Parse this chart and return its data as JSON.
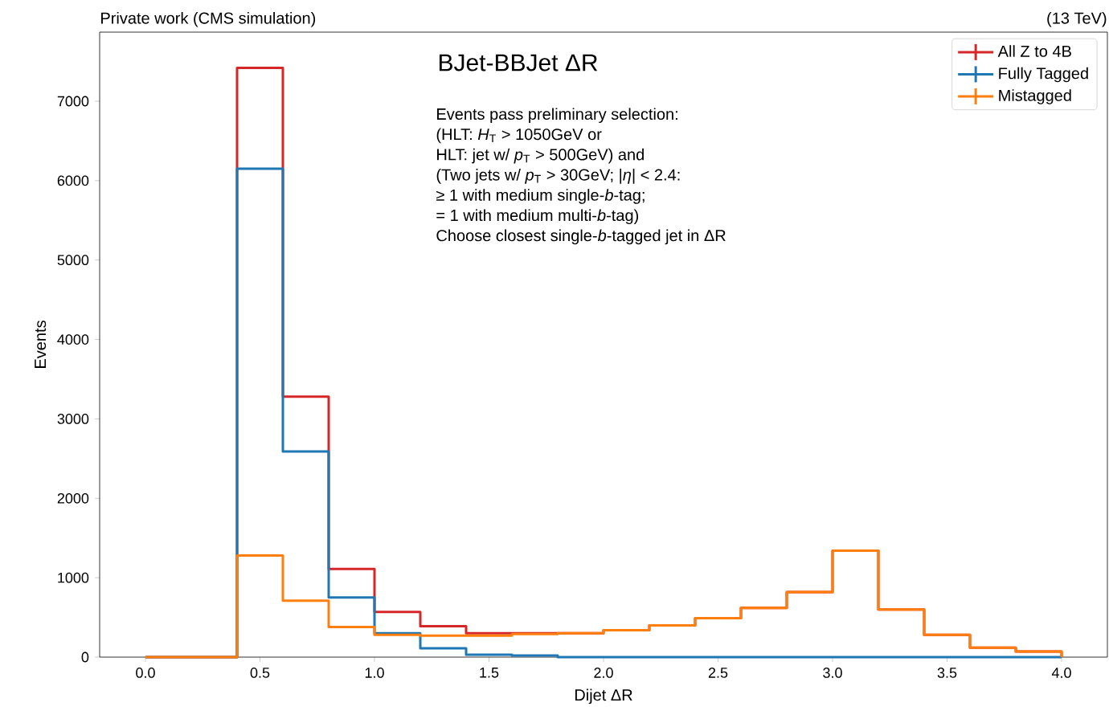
{
  "chart_data": {
    "type": "histogram",
    "title": "BJet-BBJet ΔR",
    "xlabel": "Dijet ΔR",
    "ylabel": "Events",
    "annotations": [
      "Private work (CMS simulation)",
      "(13 TeV)",
      "Events pass preliminary selection:",
      "(HLT: *H*$_{T}$ > 1050GeV or",
      "HLT: jet w/ *p*$_{T}$ > 500GeV) and",
      "(Two jets w/ *p*$_{T}$ > 30GeV; |*η*| < 2.4:",
      "≥ 1 with medium single-*b*-tag;",
      "= 1 with medium multi-*b*-tag)",
      "Choose closest single-*b*-tagged jet in ΔR"
    ],
    "bins": [
      0.0,
      0.2,
      0.4,
      0.6,
      0.8,
      1.0,
      1.2,
      1.4,
      1.6,
      1.8,
      2.0,
      2.2,
      2.4,
      2.6,
      2.8,
      3.0,
      3.2,
      3.4,
      3.6,
      3.8,
      4.0
    ],
    "series": [
      {
        "name": "All Z to 4B",
        "color": "#d62728",
        "values": [
          0,
          0,
          7420,
          3280,
          1110,
          570,
          390,
          300,
          300,
          300,
          340,
          400,
          490,
          620,
          820,
          1340,
          600,
          280,
          120,
          70
        ]
      },
      {
        "name": "Fully Tagged",
        "color": "#1f77b4",
        "values": [
          0,
          0,
          6150,
          2590,
          750,
          300,
          110,
          30,
          20,
          0,
          0,
          0,
          0,
          0,
          0,
          0,
          0,
          0,
          0,
          0
        ]
      },
      {
        "name": "Mistagged",
        "color": "#ff7f0e",
        "values": [
          0,
          0,
          1280,
          710,
          380,
          280,
          270,
          270,
          290,
          300,
          340,
          400,
          490,
          620,
          820,
          1340,
          600,
          280,
          120,
          70
        ]
      }
    ],
    "xlim": [
      -0.2,
      4.2
    ],
    "ylim": [
      0,
      7870
    ],
    "xticks": [
      {
        "value": 0,
        "label": "0.0"
      },
      {
        "value": 0.5,
        "label": "0.5"
      },
      {
        "value": 1,
        "label": "1.0"
      },
      {
        "value": 1.5,
        "label": "1.5"
      },
      {
        "value": 2,
        "label": "2.0"
      },
      {
        "value": 2.5,
        "label": "2.5"
      },
      {
        "value": 3,
        "label": "3.0"
      },
      {
        "value": 3.5,
        "label": "3.5"
      },
      {
        "value": 4,
        "label": "4.0"
      }
    ],
    "yticks": [
      0,
      1000,
      2000,
      3000,
      4000,
      5000,
      6000,
      7000
    ],
    "legend": "top right",
    "grid": false
  }
}
